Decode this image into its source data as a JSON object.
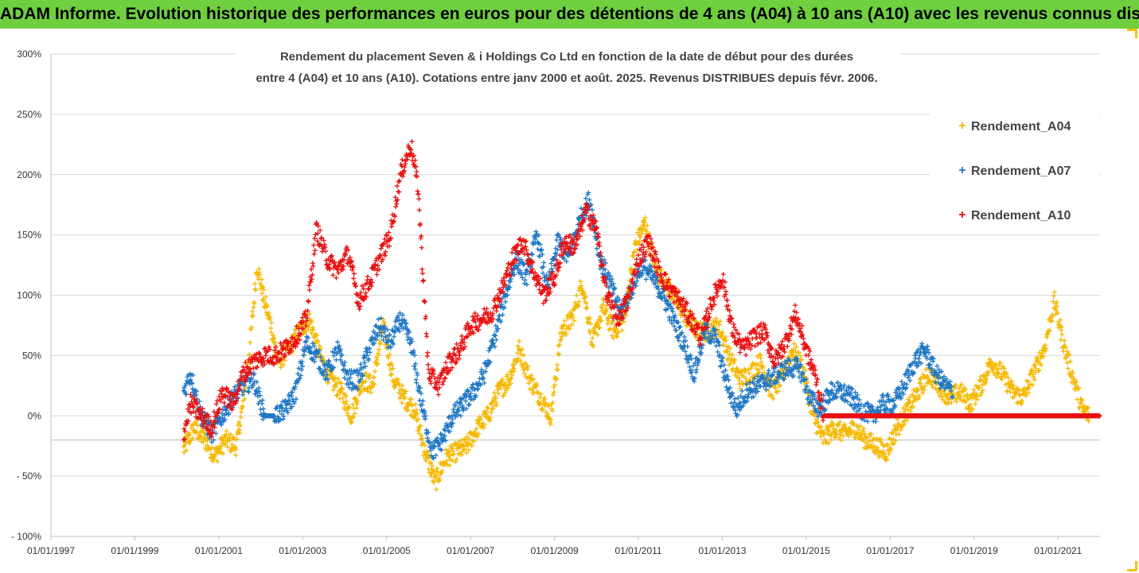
{
  "header": {
    "banner": "ADAM Informe. Evolution historique des performances en euros pour des détentions de 4 ans (A04) à 10 ans (A10) avec les revenus connus distribués"
  },
  "chart_data": {
    "type": "scatter",
    "title": "Rendement du placement Seven & i Holdings Co Ltd en fonction de la date de début pour des durées",
    "subtitle": "entre 4 (A04) et 10 ans (A10). Cotations entre janv 2000 et août. 2025. Revenus DISTRIBUES depuis févr. 2006.",
    "xlabel": "",
    "ylabel": "",
    "ylim": [
      -1.0,
      3.0
    ],
    "xlim": [
      "1997-01-01",
      "2022-01-01"
    ],
    "yticks": [
      "- 100%",
      "- 50%",
      "0%",
      "50%",
      "100%",
      "150%",
      "200%",
      "250%",
      "300%"
    ],
    "xticks": [
      "01/01/1997",
      "01/01/1999",
      "01/01/2001",
      "01/01/2003",
      "01/01/2005",
      "01/01/2007",
      "01/01/2009",
      "01/01/2011",
      "01/01/2013",
      "01/01/2015",
      "01/01/2017",
      "01/01/2019",
      "01/01/2021"
    ],
    "grid": "horizontal",
    "reference_line": -0.2,
    "legend_position": "top-right",
    "series": [
      {
        "name": "Rendement_A04",
        "color": "#f5b800",
        "points": [
          [
            "2000-03-01",
            -0.28
          ],
          [
            "2000-06-01",
            -0.1
          ],
          [
            "2000-09-01",
            -0.2
          ],
          [
            "2000-12-01",
            -0.33
          ],
          [
            "2001-03-01",
            -0.2
          ],
          [
            "2001-06-01",
            -0.25
          ],
          [
            "2001-08-01",
            0.1
          ],
          [
            "2001-10-01",
            0.6
          ],
          [
            "2001-12-01",
            1.25
          ],
          [
            "2002-02-01",
            0.95
          ],
          [
            "2002-04-01",
            0.75
          ],
          [
            "2002-06-01",
            0.45
          ],
          [
            "2002-09-01",
            0.55
          ],
          [
            "2002-12-01",
            0.7
          ],
          [
            "2003-03-01",
            0.8
          ],
          [
            "2003-06-01",
            0.5
          ],
          [
            "2003-09-01",
            0.3
          ],
          [
            "2003-12-01",
            0.2
          ],
          [
            "2004-03-01",
            0.0
          ],
          [
            "2004-06-01",
            0.3
          ],
          [
            "2004-09-01",
            0.25
          ],
          [
            "2004-12-01",
            0.75
          ],
          [
            "2005-03-01",
            0.3
          ],
          [
            "2005-06-01",
            0.15
          ],
          [
            "2005-09-01",
            0.05
          ],
          [
            "2005-12-01",
            -0.3
          ],
          [
            "2006-03-01",
            -0.55
          ],
          [
            "2006-06-01",
            -0.35
          ],
          [
            "2006-09-01",
            -0.3
          ],
          [
            "2006-12-01",
            -0.25
          ],
          [
            "2007-03-01",
            -0.1
          ],
          [
            "2007-06-01",
            0.0
          ],
          [
            "2007-09-01",
            0.2
          ],
          [
            "2007-12-01",
            0.3
          ],
          [
            "2008-03-01",
            0.55
          ],
          [
            "2008-06-01",
            0.3
          ],
          [
            "2008-09-01",
            0.15
          ],
          [
            "2008-12-01",
            0.0
          ],
          [
            "2009-03-01",
            0.7
          ],
          [
            "2009-06-01",
            0.8
          ],
          [
            "2009-09-01",
            1.1
          ],
          [
            "2009-12-01",
            0.6
          ],
          [
            "2010-03-01",
            0.9
          ],
          [
            "2010-06-01",
            0.7
          ],
          [
            "2010-09-01",
            0.8
          ],
          [
            "2010-12-01",
            1.4
          ],
          [
            "2011-03-01",
            1.6
          ],
          [
            "2011-06-01",
            1.2
          ],
          [
            "2011-09-01",
            1.1
          ],
          [
            "2011-12-01",
            0.95
          ],
          [
            "2012-03-01",
            0.8
          ],
          [
            "2012-06-01",
            0.7
          ],
          [
            "2012-09-01",
            0.7
          ],
          [
            "2012-12-01",
            0.75
          ],
          [
            "2013-03-01",
            0.5
          ],
          [
            "2013-06-01",
            0.3
          ],
          [
            "2013-09-01",
            0.35
          ],
          [
            "2013-12-01",
            0.45
          ],
          [
            "2014-03-01",
            0.2
          ],
          [
            "2014-06-01",
            0.3
          ],
          [
            "2014-09-01",
            0.55
          ],
          [
            "2014-12-01",
            0.4
          ],
          [
            "2015-03-01",
            0.0
          ],
          [
            "2015-06-01",
            -0.2
          ],
          [
            "2015-09-01",
            -0.1
          ],
          [
            "2015-12-01",
            -0.15
          ],
          [
            "2016-03-01",
            -0.1
          ],
          [
            "2016-06-01",
            -0.2
          ],
          [
            "2016-09-01",
            -0.25
          ],
          [
            "2016-12-01",
            -0.3
          ],
          [
            "2017-03-01",
            -0.1
          ],
          [
            "2017-06-01",
            0.05
          ],
          [
            "2017-09-01",
            0.2
          ],
          [
            "2017-12-01",
            0.35
          ],
          [
            "2018-03-01",
            0.25
          ],
          [
            "2018-06-01",
            0.15
          ],
          [
            "2018-09-01",
            0.2
          ],
          [
            "2018-12-01",
            0.1
          ],
          [
            "2019-03-01",
            0.25
          ],
          [
            "2019-06-01",
            0.45
          ],
          [
            "2019-09-01",
            0.35
          ],
          [
            "2019-12-01",
            0.2
          ],
          [
            "2020-03-01",
            0.15
          ],
          [
            "2020-06-01",
            0.35
          ],
          [
            "2020-09-01",
            0.55
          ],
          [
            "2020-12-01",
            0.95
          ],
          [
            "2021-03-01",
            0.55
          ],
          [
            "2021-06-01",
            0.25
          ],
          [
            "2021-08-01",
            0.05
          ],
          [
            "2021-10-01",
            0.0
          ]
        ]
      },
      {
        "name": "Rendement_A07",
        "color": "#1f77c4",
        "points": [
          [
            "2000-03-01",
            0.2
          ],
          [
            "2000-05-01",
            0.35
          ],
          [
            "2000-08-01",
            0.0
          ],
          [
            "2000-11-01",
            -0.15
          ],
          [
            "2001-02-01",
            0.0
          ],
          [
            "2001-05-01",
            0.15
          ],
          [
            "2001-08-01",
            0.25
          ],
          [
            "2001-11-01",
            0.3
          ],
          [
            "2002-02-01",
            0.0
          ],
          [
            "2002-05-01",
            0.0
          ],
          [
            "2002-08-01",
            0.05
          ],
          [
            "2002-11-01",
            0.2
          ],
          [
            "2003-02-01",
            0.6
          ],
          [
            "2003-05-01",
            0.5
          ],
          [
            "2003-08-01",
            0.35
          ],
          [
            "2003-11-01",
            0.55
          ],
          [
            "2004-02-01",
            0.3
          ],
          [
            "2004-05-01",
            0.3
          ],
          [
            "2004-08-01",
            0.55
          ],
          [
            "2004-11-01",
            0.75
          ],
          [
            "2005-02-01",
            0.6
          ],
          [
            "2005-05-01",
            0.8
          ],
          [
            "2005-08-01",
            0.6
          ],
          [
            "2005-11-01",
            0.1
          ],
          [
            "2006-02-01",
            -0.3
          ],
          [
            "2006-05-01",
            -0.2
          ],
          [
            "2006-08-01",
            0.0
          ],
          [
            "2006-11-01",
            0.1
          ],
          [
            "2007-02-01",
            0.2
          ],
          [
            "2007-05-01",
            0.35
          ],
          [
            "2007-08-01",
            0.65
          ],
          [
            "2007-11-01",
            1.0
          ],
          [
            "2008-02-01",
            1.3
          ],
          [
            "2008-05-01",
            1.15
          ],
          [
            "2008-08-01",
            1.5
          ],
          [
            "2008-11-01",
            1.05
          ],
          [
            "2009-02-01",
            1.45
          ],
          [
            "2009-05-01",
            1.3
          ],
          [
            "2009-08-01",
            1.6
          ],
          [
            "2009-11-01",
            1.8
          ],
          [
            "2010-02-01",
            1.3
          ],
          [
            "2010-05-01",
            1.1
          ],
          [
            "2010-08-01",
            0.85
          ],
          [
            "2010-11-01",
            1.05
          ],
          [
            "2011-02-01",
            1.25
          ],
          [
            "2011-05-01",
            1.15
          ],
          [
            "2011-08-01",
            1.0
          ],
          [
            "2011-11-01",
            0.8
          ],
          [
            "2012-02-01",
            0.6
          ],
          [
            "2012-05-01",
            0.35
          ],
          [
            "2012-08-01",
            0.7
          ],
          [
            "2012-11-01",
            0.65
          ],
          [
            "2013-02-01",
            0.3
          ],
          [
            "2013-05-01",
            0.05
          ],
          [
            "2013-08-01",
            0.2
          ],
          [
            "2013-11-01",
            0.25
          ],
          [
            "2014-02-01",
            0.3
          ],
          [
            "2014-05-01",
            0.35
          ],
          [
            "2014-08-01",
            0.4
          ],
          [
            "2014-11-01",
            0.4
          ],
          [
            "2015-02-01",
            0.15
          ],
          [
            "2015-05-01",
            0.05
          ],
          [
            "2015-08-01",
            0.2
          ],
          [
            "2015-11-01",
            0.2
          ],
          [
            "2016-02-01",
            0.15
          ],
          [
            "2016-05-01",
            0.05
          ],
          [
            "2016-08-01",
            0.0
          ],
          [
            "2016-11-01",
            0.1
          ],
          [
            "2017-02-01",
            0.1
          ],
          [
            "2017-05-01",
            0.25
          ],
          [
            "2017-08-01",
            0.45
          ],
          [
            "2017-11-01",
            0.55
          ],
          [
            "2018-02-01",
            0.35
          ],
          [
            "2018-05-01",
            0.25
          ],
          [
            "2018-07-01",
            0.2
          ]
        ]
      },
      {
        "name": "Rendement_A10",
        "color": "#e81010",
        "points": [
          [
            "2000-03-01",
            -0.15
          ],
          [
            "2000-05-01",
            0.1
          ],
          [
            "2000-08-01",
            0.0
          ],
          [
            "2000-11-01",
            -0.1
          ],
          [
            "2001-02-01",
            0.2
          ],
          [
            "2001-05-01",
            0.1
          ],
          [
            "2001-08-01",
            0.35
          ],
          [
            "2001-11-01",
            0.45
          ],
          [
            "2002-02-01",
            0.5
          ],
          [
            "2002-05-01",
            0.5
          ],
          [
            "2002-08-01",
            0.55
          ],
          [
            "2002-11-01",
            0.65
          ],
          [
            "2003-02-01",
            0.8
          ],
          [
            "2003-05-01",
            1.55
          ],
          [
            "2003-08-01",
            1.3
          ],
          [
            "2003-11-01",
            1.2
          ],
          [
            "2004-02-01",
            1.35
          ],
          [
            "2004-05-01",
            0.95
          ],
          [
            "2004-08-01",
            1.1
          ],
          [
            "2004-11-01",
            1.3
          ],
          [
            "2005-02-01",
            1.5
          ],
          [
            "2005-05-01",
            2.0
          ],
          [
            "2005-08-01",
            2.25
          ],
          [
            "2005-10-01",
            1.9
          ],
          [
            "2006-01-01",
            0.35
          ],
          [
            "2006-04-01",
            0.25
          ],
          [
            "2006-07-01",
            0.45
          ],
          [
            "2006-10-01",
            0.55
          ],
          [
            "2007-01-01",
            0.75
          ],
          [
            "2007-04-01",
            0.8
          ],
          [
            "2007-07-01",
            0.85
          ],
          [
            "2007-10-01",
            1.05
          ],
          [
            "2008-01-01",
            1.3
          ],
          [
            "2008-04-01",
            1.45
          ],
          [
            "2008-07-01",
            1.2
          ],
          [
            "2008-10-01",
            1.0
          ],
          [
            "2009-01-01",
            1.15
          ],
          [
            "2009-04-01",
            1.45
          ],
          [
            "2009-07-01",
            1.4
          ],
          [
            "2009-10-01",
            1.7
          ],
          [
            "2010-01-01",
            1.55
          ],
          [
            "2010-04-01",
            1.0
          ],
          [
            "2010-07-01",
            0.8
          ],
          [
            "2010-10-01",
            0.95
          ],
          [
            "2011-01-01",
            1.3
          ],
          [
            "2011-04-01",
            1.45
          ],
          [
            "2011-07-01",
            1.2
          ],
          [
            "2011-10-01",
            1.05
          ],
          [
            "2012-01-01",
            0.95
          ],
          [
            "2012-04-01",
            0.8
          ],
          [
            "2012-07-01",
            0.65
          ],
          [
            "2012-10-01",
            0.95
          ],
          [
            "2013-01-01",
            1.15
          ],
          [
            "2013-04-01",
            0.7
          ],
          [
            "2013-07-01",
            0.55
          ],
          [
            "2013-10-01",
            0.65
          ],
          [
            "2014-01-01",
            0.7
          ],
          [
            "2014-04-01",
            0.45
          ],
          [
            "2014-07-01",
            0.6
          ],
          [
            "2014-10-01",
            0.85
          ],
          [
            "2015-01-01",
            0.55
          ],
          [
            "2015-04-01",
            0.3
          ],
          [
            "2015-06-01",
            0.0
          ],
          [
            "2022-01-01",
            0.0
          ]
        ]
      }
    ]
  }
}
